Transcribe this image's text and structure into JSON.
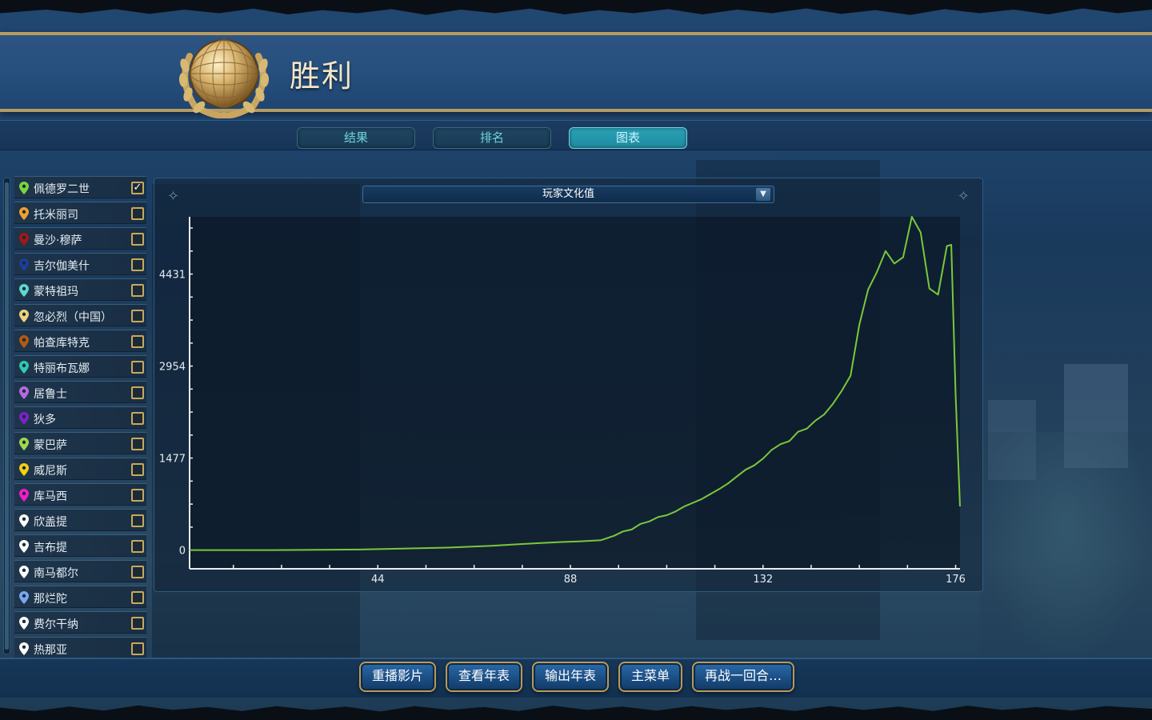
{
  "header": {
    "title": "胜利"
  },
  "tabs": [
    {
      "label": "结果",
      "active": false
    },
    {
      "label": "排名",
      "active": false
    },
    {
      "label": "图表",
      "active": true
    }
  ],
  "civs": [
    {
      "name": "佩德罗二世",
      "color": "#7bd63c",
      "checked": true
    },
    {
      "name": "托米丽司",
      "color": "#f0a030",
      "checked": false
    },
    {
      "name": "曼沙·穆萨",
      "color": "#a01818",
      "checked": false
    },
    {
      "name": "吉尔伽美什",
      "color": "#1b3f9a",
      "checked": false
    },
    {
      "name": "蒙特祖玛",
      "color": "#5fd8d0",
      "checked": false
    },
    {
      "name": "忽必烈（中国）",
      "color": "#f2d27a",
      "checked": false
    },
    {
      "name": "帕查库特克",
      "color": "#b35a12",
      "checked": false
    },
    {
      "name": "特丽布瓦娜",
      "color": "#2ec9b0",
      "checked": false
    },
    {
      "name": "居鲁士",
      "color": "#b46ae0",
      "checked": false
    },
    {
      "name": "狄多",
      "color": "#7a22c8",
      "checked": false
    },
    {
      "name": "蒙巴萨",
      "color": "#9ed84a",
      "checked": false
    },
    {
      "name": "威尼斯",
      "color": "#f5cf12",
      "checked": false
    },
    {
      "name": "库马西",
      "color": "#f21ccc",
      "checked": false
    },
    {
      "name": "欣盖提",
      "color": "#ffffff",
      "checked": false
    },
    {
      "name": "吉布提",
      "color": "#ffffff",
      "checked": false
    },
    {
      "name": "南马都尔",
      "color": "#ffffff",
      "checked": false
    },
    {
      "name": "那烂陀",
      "color": "#7aa8f0",
      "checked": false
    },
    {
      "name": "费尔干纳",
      "color": "#ffffff",
      "checked": false
    },
    {
      "name": "热那亚",
      "color": "#ffffff",
      "checked": false
    }
  ],
  "chart_selector": {
    "value": "玩家文化值"
  },
  "buttons": {
    "replay": "重播影片",
    "view_chronicle": "查看年表",
    "export_chronicle": "输出年表",
    "main_menu": "主菜单",
    "one_more_turn": "再战一回合…"
  },
  "chart_data": {
    "type": "line",
    "xlim": [
      1,
      177
    ],
    "ylim": [
      -300,
      5350
    ],
    "xticks": [
      44,
      88,
      132,
      176
    ],
    "yticks": [
      0,
      1477,
      2954,
      4431
    ],
    "series": [
      {
        "color": "#7bc83a",
        "x": [
          1,
          20,
          40,
          60,
          70,
          80,
          86,
          90,
          95,
          98,
          100,
          102,
          104,
          106,
          108,
          110,
          112,
          114,
          116,
          118,
          120,
          122,
          124,
          126,
          128,
          130,
          132,
          134,
          136,
          138,
          140,
          142,
          144,
          146,
          148,
          150,
          152,
          154,
          156,
          158,
          160,
          162,
          164,
          166,
          168,
          170,
          172,
          174,
          175,
          176,
          177
        ],
        "y": [
          0,
          0,
          10,
          40,
          70,
          110,
          130,
          140,
          160,
          230,
          300,
          330,
          420,
          460,
          530,
          560,
          620,
          700,
          760,
          820,
          900,
          980,
          1070,
          1180,
          1290,
          1360,
          1470,
          1610,
          1700,
          1750,
          1900,
          1950,
          2080,
          2180,
          2350,
          2560,
          2800,
          3620,
          4180,
          4460,
          4800,
          4600,
          4700,
          5350,
          5100,
          4200,
          4100,
          4880,
          4900,
          2500,
          700
        ]
      }
    ]
  }
}
